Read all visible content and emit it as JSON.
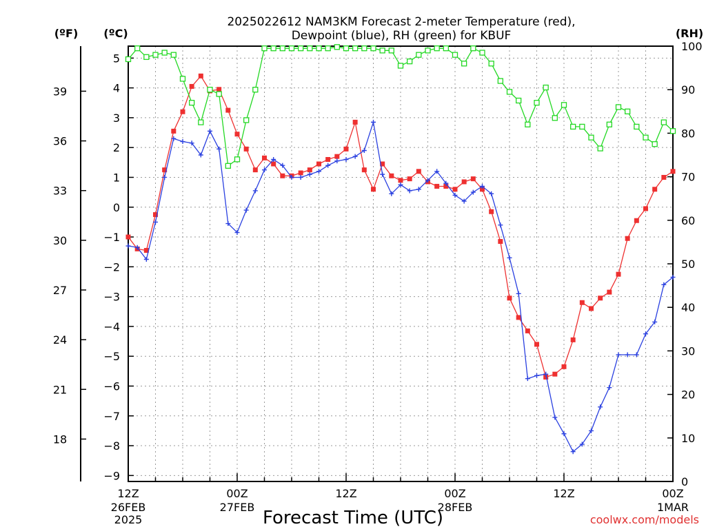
{
  "chart_data": {
    "type": "line",
    "title_line1": "2025022612 NAM3KM Forecast 2-meter Temperature (red),",
    "title_line2": "Dewpoint (blue), RH (green) for KBUF",
    "xlabel": "Forecast Time (UTC)",
    "credit": "coolwx.com/models",
    "left_unit_f": "(ºF)",
    "left_unit_c": "(ºC)",
    "right_unit": "(RH)",
    "x_range_hours": [
      0,
      60
    ],
    "y_range_c": [
      -9.2,
      5.4
    ],
    "y2_range": [
      0,
      100
    ],
    "celsius_ticks": [
      5,
      4,
      3,
      2,
      1,
      0,
      -1,
      -2,
      -3,
      -4,
      -5,
      -6,
      -7,
      -8,
      -9
    ],
    "fahrenheit_ticks": [
      39,
      36,
      33,
      30,
      27,
      24,
      21,
      18
    ],
    "rh_ticks": [
      100,
      90,
      80,
      70,
      60,
      50,
      40,
      30,
      20,
      10,
      0
    ],
    "x_ticks": [
      {
        "hour": 0,
        "line1": "12Z",
        "line2": "26FEB",
        "line3": "2025"
      },
      {
        "hour": 12,
        "line1": "00Z",
        "line2": "27FEB",
        "line3": ""
      },
      {
        "hour": 24,
        "line1": "12Z",
        "line2": "",
        "line3": ""
      },
      {
        "hour": 36,
        "line1": "00Z",
        "line2": "28FEB",
        "line3": ""
      },
      {
        "hour": 48,
        "line1": "12Z",
        "line2": "",
        "line3": ""
      },
      {
        "hour": 60,
        "line1": "00Z",
        "line2": "1MAR",
        "line3": ""
      }
    ],
    "grid": true,
    "series": [
      {
        "name": "Temperature",
        "color": "#ee3030",
        "marker": "filled-square",
        "axis": "celsius",
        "x": [
          0,
          1,
          2,
          3,
          4,
          5,
          6,
          7,
          8,
          9,
          10,
          11,
          12,
          13,
          14,
          15,
          16,
          17,
          18,
          19,
          20,
          21,
          22,
          23,
          24,
          25,
          26,
          27,
          28,
          29,
          30,
          31,
          32,
          33,
          34,
          35,
          36,
          37,
          38,
          39,
          40,
          41,
          42,
          43,
          44,
          45,
          46,
          47,
          48,
          49,
          50,
          51,
          52,
          53,
          54,
          55,
          56,
          57,
          58,
          59,
          60
        ],
        "values": [
          -1.0,
          -1.4,
          -1.45,
          -0.25,
          1.25,
          2.55,
          3.2,
          4.05,
          4.4,
          3.9,
          3.95,
          3.25,
          2.45,
          1.95,
          1.25,
          1.65,
          1.45,
          1.05,
          1.05,
          1.15,
          1.25,
          1.45,
          1.6,
          1.7,
          1.95,
          2.85,
          1.25,
          0.6,
          1.45,
          1.05,
          0.9,
          0.95,
          1.2,
          0.85,
          0.7,
          0.7,
          0.6,
          0.85,
          0.95,
          0.6,
          -0.15,
          -1.15,
          -3.05,
          -3.7,
          -4.15,
          -4.6,
          -5.7,
          -5.6,
          -5.35,
          -4.45,
          -3.2,
          -3.4,
          -3.05,
          -2.85,
          -2.25,
          -1.05,
          -0.45,
          -0.05,
          0.6,
          1.0,
          1.2
        ],
        "values_note": ""
      },
      {
        "name": "Dewpoint",
        "color": "#2a40e0",
        "marker": "plus",
        "axis": "celsius",
        "x": [
          0,
          1,
          2,
          3,
          4,
          5,
          6,
          7,
          8,
          9,
          10,
          11,
          12,
          13,
          14,
          15,
          16,
          17,
          18,
          19,
          20,
          21,
          22,
          23,
          24,
          25,
          26,
          27,
          28,
          29,
          30,
          31,
          32,
          33,
          34,
          35,
          36,
          37,
          38,
          39,
          40,
          41,
          42,
          43,
          44,
          45,
          46,
          47,
          48,
          49,
          50,
          51,
          52,
          53,
          54,
          55,
          56,
          57,
          58,
          59,
          60
        ],
        "values": [
          -1.3,
          -1.35,
          -1.75,
          -0.5,
          1.0,
          2.3,
          2.2,
          2.15,
          1.75,
          2.55,
          1.95,
          -0.55,
          -0.85,
          -0.1,
          0.55,
          1.25,
          1.6,
          1.4,
          1.0,
          1.0,
          1.1,
          1.2,
          1.4,
          1.55,
          1.6,
          1.7,
          1.9,
          2.85,
          1.1,
          0.45,
          0.75,
          0.55,
          0.6,
          0.9,
          1.2,
          0.8,
          0.4,
          0.2,
          0.5,
          0.7,
          0.45,
          -0.6,
          -1.7,
          -2.9,
          -5.75,
          -5.65,
          -5.6,
          -7.05,
          -7.6,
          -8.2,
          -7.95,
          -7.5,
          -6.7,
          -6.05,
          -4.95,
          -4.95,
          -4.95,
          -4.25,
          -3.85,
          -2.6,
          -2.35
        ],
        "values_note": ""
      },
      {
        "name": "RH",
        "color": "#22d822",
        "marker": "open-square",
        "axis": "rh",
        "x": [
          0,
          1,
          2,
          3,
          4,
          5,
          6,
          7,
          8,
          9,
          10,
          11,
          12,
          13,
          14,
          15,
          16,
          17,
          18,
          19,
          20,
          21,
          22,
          23,
          24,
          25,
          26,
          27,
          28,
          29,
          30,
          31,
          32,
          33,
          34,
          35,
          36,
          37,
          38,
          39,
          40,
          41,
          42,
          43,
          44,
          45,
          46,
          47,
          48,
          49,
          50,
          51,
          52,
          53,
          54,
          55,
          56,
          57,
          58,
          59,
          60
        ],
        "values": [
          97,
          99.5,
          97.5,
          98,
          98.5,
          98,
          92.5,
          87,
          82.5,
          90,
          89,
          72.5,
          74,
          83,
          90,
          99.5,
          99.5,
          99.5,
          99.5,
          99.5,
          99.5,
          99.5,
          99.5,
          99.8,
          99.5,
          99.5,
          99.5,
          99.5,
          99,
          99,
          95.5,
          96.5,
          98,
          99,
          99.5,
          99.5,
          98,
          96,
          99.5,
          98.5,
          96,
          92,
          89.5,
          87.5,
          82,
          87,
          90.5,
          83.5,
          86.5,
          81.5,
          81.5,
          79,
          76.5,
          82,
          86,
          85,
          81.5,
          79,
          77.5,
          82.5,
          80.5
        ],
        "values_note": ""
      }
    ]
  }
}
